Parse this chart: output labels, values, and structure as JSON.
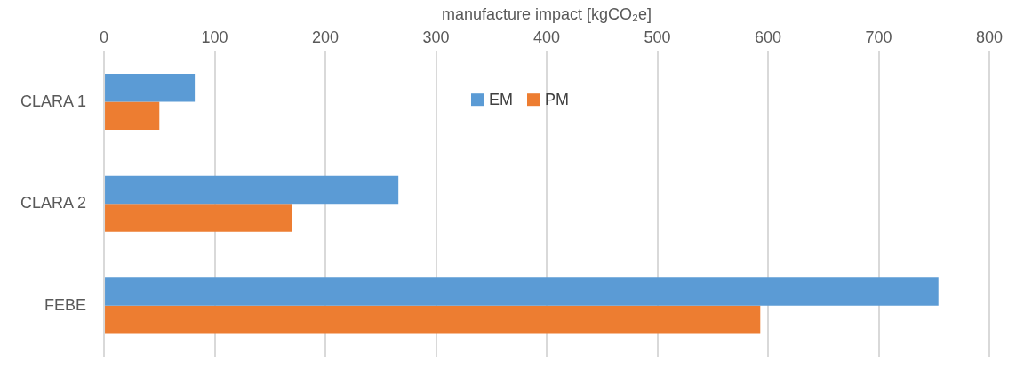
{
  "chart_data": {
    "type": "bar",
    "orientation": "horizontal",
    "xlabel": "manufacture impact [kgCO₂e]",
    "categories": [
      "CLARA 1",
      "CLARA 2",
      "FEBE"
    ],
    "series": [
      {
        "name": "EM",
        "color": "#5b9bd5",
        "values": [
          82,
          266,
          754
        ]
      },
      {
        "name": "PM",
        "color": "#ed7d31",
        "values": [
          50,
          170,
          593
        ]
      }
    ],
    "xlim": [
      0,
      800
    ],
    "xticks": [
      0,
      100,
      200,
      300,
      400,
      500,
      600,
      700,
      800
    ],
    "grid": "x",
    "legend": "top"
  }
}
